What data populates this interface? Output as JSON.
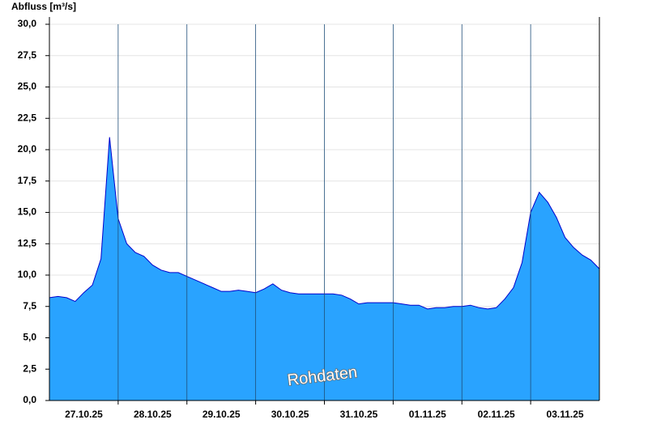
{
  "chart_data": {
    "type": "area",
    "ylabel": "Abfluss [m³/s]",
    "watermark": "Rohdaten",
    "categories": [
      null,
      null,
      null,
      null,
      "27.10.25",
      null,
      null,
      null,
      null,
      null,
      null,
      null,
      "28.10.25",
      null,
      null,
      null,
      null,
      null,
      null,
      null,
      "29.10.25",
      null,
      null,
      null,
      null,
      null,
      null,
      null,
      "30.10.25",
      null,
      null,
      null,
      null,
      null,
      null,
      null,
      "31.10.25",
      null,
      null,
      null,
      null,
      null,
      null,
      null,
      "01.11.25",
      null,
      null,
      null,
      null,
      null,
      null,
      null,
      "02.11.25",
      null,
      null,
      null,
      null,
      null,
      null,
      null,
      "03.11.25",
      null,
      null,
      null,
      null
    ],
    "values": [
      8.2,
      8.3,
      8.2,
      7.9,
      8.6,
      9.2,
      11.3,
      21.0,
      14.5,
      12.5,
      11.8,
      11.5,
      10.8,
      10.4,
      10.2,
      10.2,
      9.9,
      9.6,
      9.3,
      9.0,
      8.7,
      8.7,
      8.8,
      8.7,
      8.6,
      8.9,
      9.3,
      8.8,
      8.6,
      8.5,
      8.5,
      8.5,
      8.5,
      8.5,
      8.4,
      8.1,
      7.7,
      7.8,
      7.8,
      7.8,
      7.8,
      7.7,
      7.6,
      7.6,
      7.3,
      7.4,
      7.4,
      7.5,
      7.5,
      7.6,
      7.4,
      7.3,
      7.4,
      8.1,
      9.0,
      11.0,
      15.0,
      16.6,
      15.8,
      14.6,
      13.0,
      12.2,
      11.6,
      11.2,
      10.5
    ],
    "color": "#29a3ff",
    "line_color": "#0000cc",
    "ylim": [
      0,
      30
    ],
    "yticks": [
      {
        "value": 0,
        "label": "0,0"
      },
      {
        "value": 2.5,
        "label": "2,5"
      },
      {
        "value": 5,
        "label": "5,0"
      },
      {
        "value": 7.5,
        "label": "7,5"
      },
      {
        "value": 10,
        "label": "10,0"
      },
      {
        "value": 12.5,
        "label": "12,5"
      },
      {
        "value": 15,
        "label": "15,0"
      },
      {
        "value": 17.5,
        "label": "17,5"
      },
      {
        "value": 20,
        "label": "20,0"
      },
      {
        "value": 22.5,
        "label": "22,5"
      },
      {
        "value": 25,
        "label": "25,0"
      },
      {
        "value": 27.5,
        "label": "27,5"
      },
      {
        "value": 30,
        "label": "30,0"
      }
    ],
    "grid": true
  }
}
